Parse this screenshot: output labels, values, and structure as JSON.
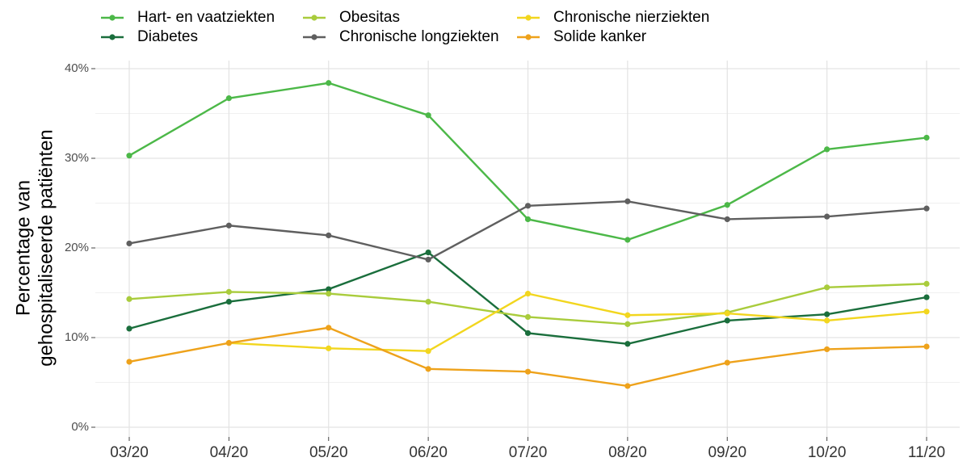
{
  "chart_data": {
    "type": "line",
    "ylabel": [
      "Percentage van",
      "gehospitaliseerde patiënten"
    ],
    "categories": [
      "03/20",
      "04/20",
      "05/20",
      "06/20",
      "07/20",
      "08/20",
      "09/20",
      "10/20",
      "11/20"
    ],
    "series": [
      {
        "name": "Hart- en vaatziekten",
        "color": "#4cb848",
        "values": [
          30.3,
          36.7,
          38.4,
          34.8,
          23.2,
          20.9,
          24.8,
          31.0,
          32.3
        ]
      },
      {
        "name": "Diabetes",
        "color": "#1a6e3c",
        "values": [
          11.0,
          14.0,
          15.4,
          19.5,
          10.5,
          9.3,
          11.9,
          12.6,
          14.5
        ]
      },
      {
        "name": "Obesitas",
        "color": "#a9cc3c",
        "values": [
          14.3,
          15.1,
          14.9,
          14.0,
          12.3,
          11.5,
          12.8,
          15.6,
          16.0
        ]
      },
      {
        "name": "Chronische longziekten",
        "color": "#5f5f5f",
        "values": [
          20.5,
          22.5,
          21.4,
          18.7,
          24.7,
          25.2,
          23.2,
          23.5,
          24.4
        ]
      },
      {
        "name": "Chronische nierziekten",
        "color": "#f2d61e",
        "values": [
          null,
          9.4,
          8.8,
          8.5,
          14.9,
          12.5,
          12.7,
          11.9,
          12.9
        ]
      },
      {
        "name": "Solide kanker",
        "color": "#eea21b",
        "values": [
          7.3,
          9.4,
          11.1,
          6.5,
          6.2,
          4.6,
          7.2,
          8.7,
          9.0
        ]
      }
    ],
    "ylim": [
      0,
      40
    ],
    "yticks": [
      {
        "value": 0,
        "label": "0%"
      },
      {
        "value": 10,
        "label": "10%"
      },
      {
        "value": 20,
        "label": "20%"
      },
      {
        "value": 30,
        "label": "30%"
      },
      {
        "value": 40,
        "label": "40%"
      }
    ],
    "y_minor_ticks": [
      5,
      15,
      25,
      35
    ],
    "grid": true
  }
}
